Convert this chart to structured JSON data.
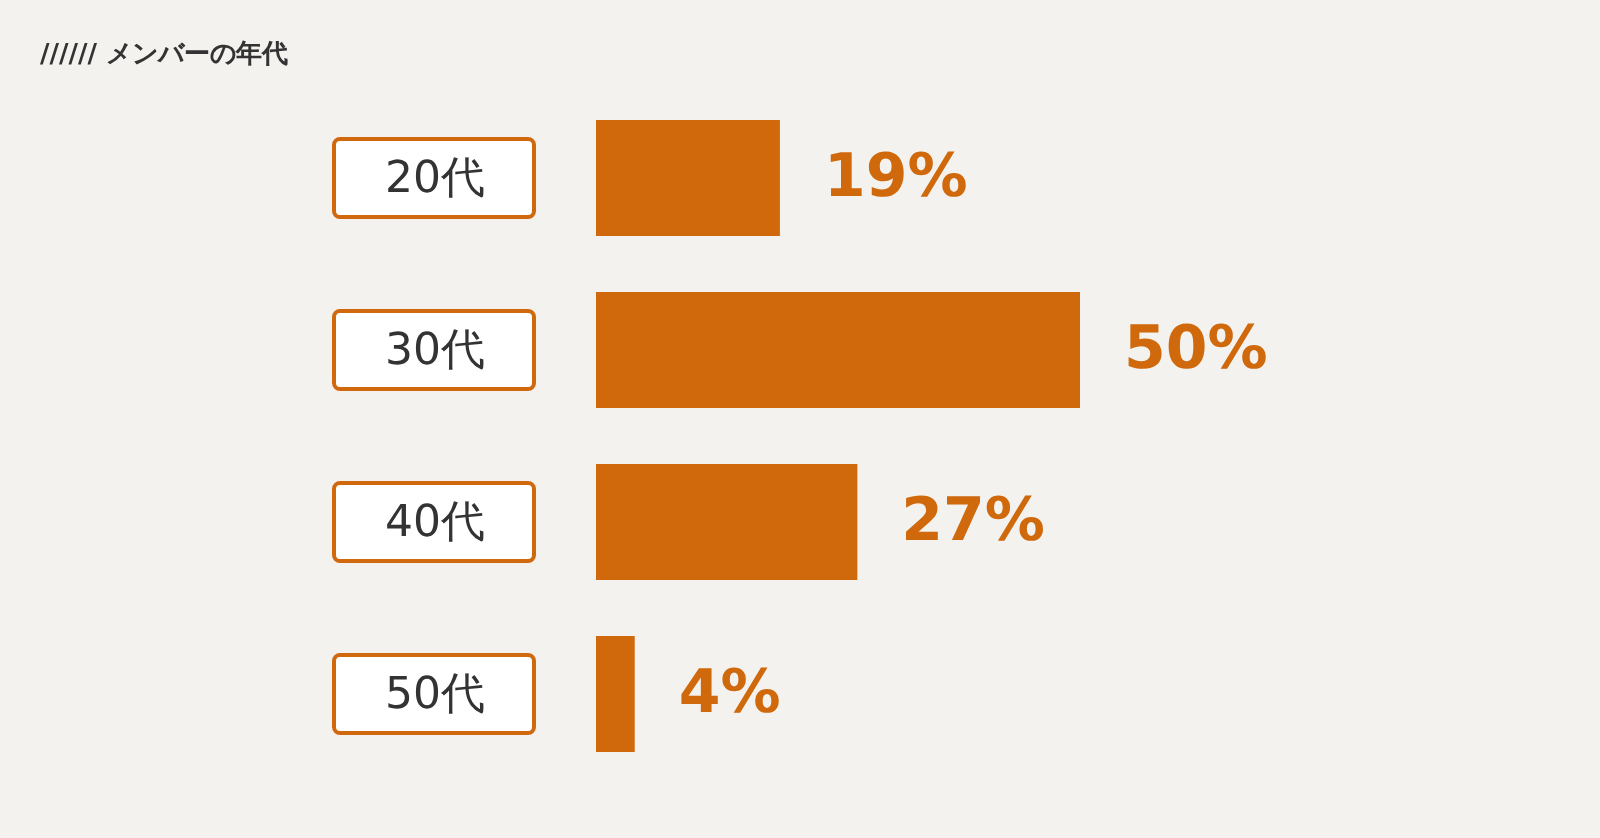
{
  "chart_data": {
    "type": "bar",
    "orientation": "horizontal",
    "title": "////// メンバーの年代",
    "categories": [
      "20代",
      "30代",
      "40代",
      "50代"
    ],
    "values": [
      19,
      50,
      27,
      4
    ],
    "value_labels": [
      "19%",
      "50%",
      "27%",
      "4%"
    ],
    "color": "#d0680c",
    "tick_labels": "y"
  }
}
